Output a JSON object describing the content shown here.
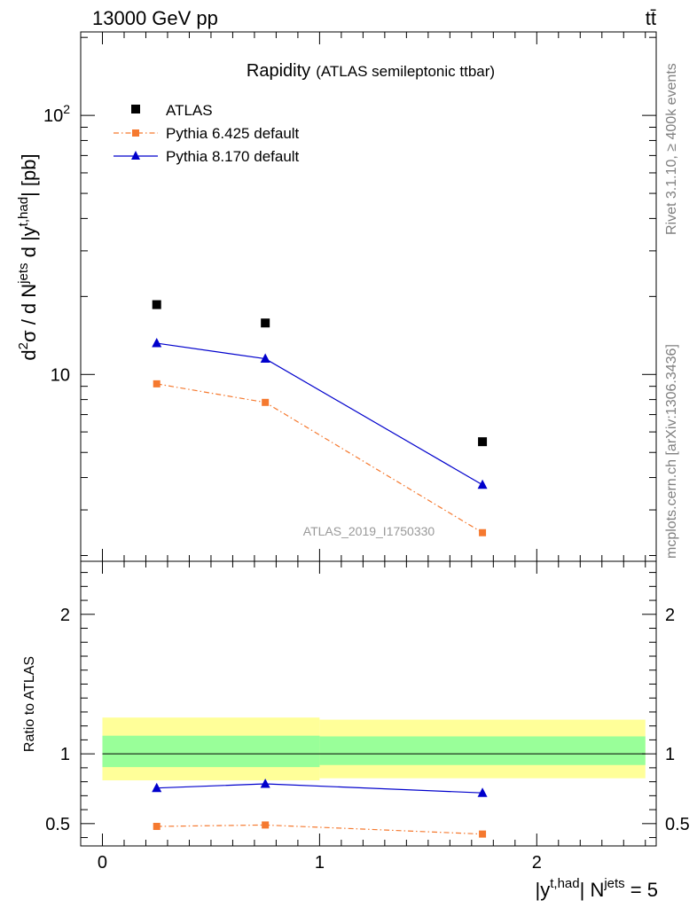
{
  "header": {
    "left": "13000 GeV pp",
    "right": "tt̄"
  },
  "side_labels": {
    "rivet": "Rivet 3.1.10, ≥ 400k events",
    "mcplots": "mcplots.cern.ch [arXiv:1306.3436]"
  },
  "chart_data": [
    {
      "type": "scatter",
      "panel": "main",
      "title": "Rapidity",
      "subtitle": "(ATLAS semileptonic ttbar)",
      "watermark": "ATLAS_2019_I1750330",
      "ylabel": {
        "prefix": "d",
        "sup1": "2",
        "mid1": "σ  /  d N",
        "sup2": "jets",
        "mid2": " d |y",
        "sup3": "t,had",
        "suffix": "| [pb]"
      },
      "yscale": "log",
      "ylim": [
        1.9,
        210
      ],
      "xlim": [
        -0.1,
        2.55
      ],
      "yticks": [
        {
          "label": "10",
          "value": 10
        },
        {
          "label": "10",
          "sup": "2",
          "value": 100
        }
      ],
      "legend_position": "top-left",
      "series": [
        {
          "name": "ATLAS",
          "marker": "square",
          "color": "#000000",
          "points": [
            [
              0.25,
              18.6
            ],
            [
              0.75,
              15.8
            ],
            [
              1.75,
              5.5
            ]
          ]
        },
        {
          "name": "Pythia 6.425 default",
          "marker": "square",
          "color": "#f5792f",
          "line": "dashdot",
          "points": [
            [
              0.25,
              9.2
            ],
            [
              0.75,
              7.8
            ],
            [
              1.75,
              2.45
            ]
          ]
        },
        {
          "name": "Pythia 8.170 default",
          "marker": "triangle",
          "color": "#0000cc",
          "line": "solid",
          "points": [
            [
              0.25,
              13.2
            ],
            [
              0.75,
              11.5
            ],
            [
              1.75,
              3.75
            ]
          ]
        }
      ]
    },
    {
      "type": "scatter",
      "panel": "ratio",
      "ylabel": "Ratio to ATLAS",
      "ylim": [
        0.34,
        2.38
      ],
      "xlim": [
        -0.1,
        2.55
      ],
      "yticks": [
        {
          "label": "0.5",
          "value": 0.5
        },
        {
          "label": "1",
          "value": 1
        },
        {
          "label": "2",
          "value": 2
        }
      ],
      "xticks": [
        {
          "label": "0",
          "value": 0
        },
        {
          "label": "1",
          "value": 1
        },
        {
          "label": "2",
          "value": 2
        }
      ],
      "xlabel": {
        "prefix": "|y",
        "sup1": "t,had",
        "mid": "| N",
        "sup2": "jets",
        "suffix": " = 5"
      },
      "reference_line": 1,
      "bands": [
        {
          "color": "#ffff99",
          "bins": [
            [
              0,
              1,
              0.81,
              1.26
            ],
            [
              1,
              2.5,
              0.825,
              1.245
            ]
          ]
        },
        {
          "color": "#99ff99",
          "bins": [
            [
              0,
              1,
              0.905,
              1.13
            ],
            [
              1,
              2.5,
              0.92,
              1.125
            ]
          ]
        }
      ],
      "series": [
        {
          "name": "Pythia 6.425 default",
          "marker": "square",
          "color": "#f5792f",
          "line": "dashdot",
          "points": [
            [
              0.25,
              0.48
            ],
            [
              0.75,
              0.49
            ],
            [
              1.75,
              0.425
            ]
          ]
        },
        {
          "name": "Pythia 8.170 default",
          "marker": "triangle",
          "color": "#0000cc",
          "line": "solid",
          "points": [
            [
              0.25,
              0.755
            ],
            [
              0.75,
              0.785
            ],
            [
              1.75,
              0.72
            ]
          ]
        }
      ]
    }
  ]
}
